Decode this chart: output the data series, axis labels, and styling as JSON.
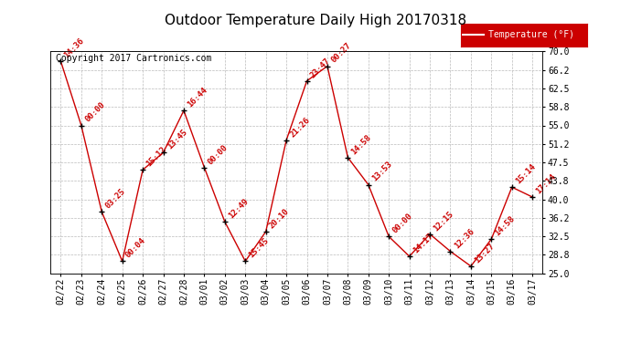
{
  "title": "Outdoor Temperature Daily High 20170318",
  "copyright": "Copyright 2017 Cartronics.com",
  "legend_label": "Temperature (°F)",
  "dates": [
    "02/22",
    "02/23",
    "02/24",
    "02/25",
    "02/26",
    "02/27",
    "02/28",
    "03/01",
    "03/02",
    "03/03",
    "03/04",
    "03/05",
    "03/06",
    "03/07",
    "03/08",
    "03/09",
    "03/10",
    "03/11",
    "03/12",
    "03/13",
    "03/14",
    "03/15",
    "03/16",
    "03/17"
  ],
  "temps": [
    68.0,
    55.0,
    37.5,
    27.5,
    46.0,
    49.5,
    58.0,
    46.5,
    35.5,
    27.5,
    33.5,
    52.0,
    64.0,
    67.0,
    48.5,
    43.0,
    32.5,
    28.5,
    33.0,
    29.5,
    26.5,
    32.0,
    42.5,
    40.5
  ],
  "labels": [
    "14:36",
    "00:00",
    "03:25",
    "00:04",
    "15:12",
    "13:45",
    "16:44",
    "00:00",
    "12:49",
    "15:45",
    "20:10",
    "21:26",
    "23:47",
    "00:27",
    "14:58",
    "13:53",
    "00:00",
    "14:17",
    "12:15",
    "12:36",
    "13:27",
    "14:58",
    "15:14",
    "17:14"
  ],
  "ylim": [
    25.0,
    70.0
  ],
  "yticks": [
    25.0,
    28.8,
    32.5,
    36.2,
    40.0,
    43.8,
    47.5,
    51.2,
    55.0,
    58.8,
    62.5,
    66.2,
    70.0
  ],
  "line_color": "#cc0000",
  "marker_color": "#000000",
  "bg_color": "#ffffff",
  "plot_bg_color": "#ffffff",
  "grid_color": "#bbbbbb",
  "title_fontsize": 11,
  "annotation_fontsize": 6.5,
  "tick_fontsize": 7,
  "copyright_fontsize": 7
}
